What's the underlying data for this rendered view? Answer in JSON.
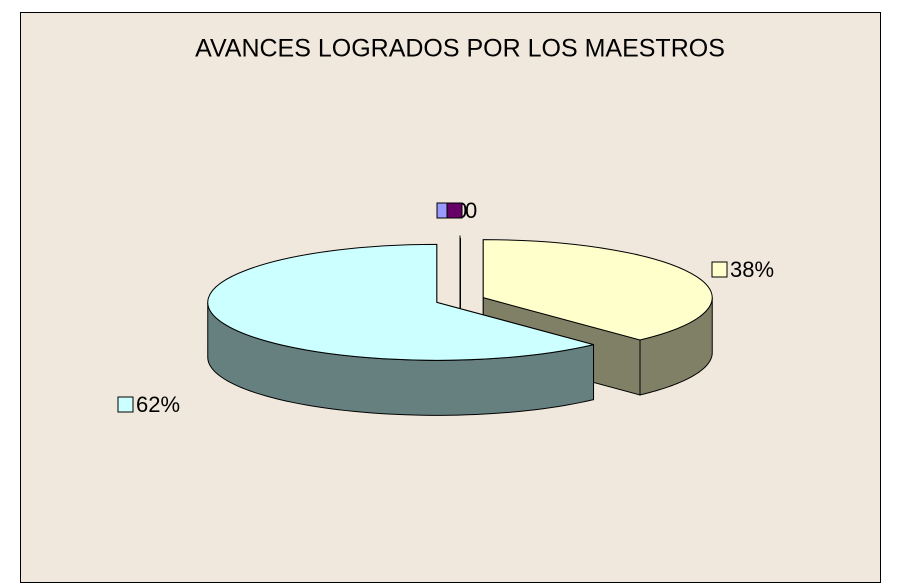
{
  "chart_data": {
    "type": "pie3d",
    "title": "AVANCES LOGRADOS POR LOS MAESTROS",
    "values": [
      38,
      62,
      0,
      0
    ],
    "value_labels": [
      "38%",
      "62%",
      "0",
      "0"
    ],
    "colors": [
      "#FFFFCC",
      "#CCFFFF",
      "#9999FF",
      "#660066"
    ]
  }
}
